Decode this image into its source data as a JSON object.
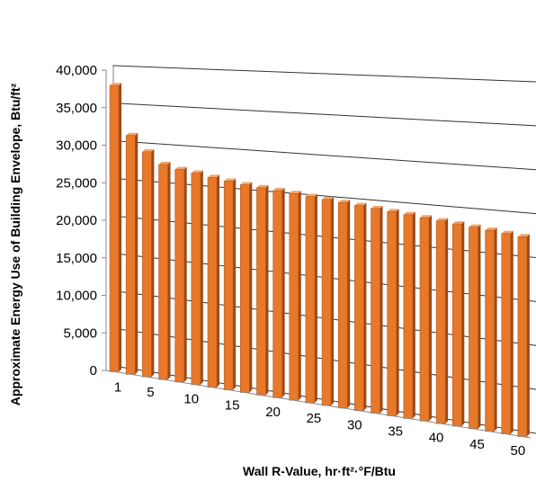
{
  "chart_data": {
    "type": "bar",
    "title": "",
    "xlabel": "Wall R-Value, hr·ft²·°F/Btu",
    "ylabel": "Approximate Energy Use of Building Envelope, Btu/ft²",
    "ylim": [
      0,
      40000
    ],
    "yticks": [
      "0",
      "5,000",
      "10,000",
      "15,000",
      "20,000",
      "25,000",
      "30,000",
      "35,000",
      "40,000"
    ],
    "xticks": [
      "1",
      "5",
      "10",
      "15",
      "20",
      "25",
      "30",
      "35",
      "40",
      "45",
      "50"
    ],
    "grid": true,
    "legend": "none",
    "bar_color": "#e8782a",
    "x": [
      1,
      3,
      5,
      7,
      9,
      11,
      13,
      15,
      17,
      19,
      21,
      23,
      25,
      27,
      29,
      31,
      33,
      35,
      37,
      39,
      41,
      43,
      45,
      47,
      49,
      51
    ],
    "values": [
      38000,
      31500,
      29500,
      28000,
      27500,
      27200,
      26800,
      26500,
      26200,
      26000,
      25800,
      25600,
      25400,
      25200,
      25000,
      24800,
      24600,
      24400,
      24200,
      24000,
      23800,
      23600,
      23400,
      23200,
      23000,
      22800
    ]
  }
}
